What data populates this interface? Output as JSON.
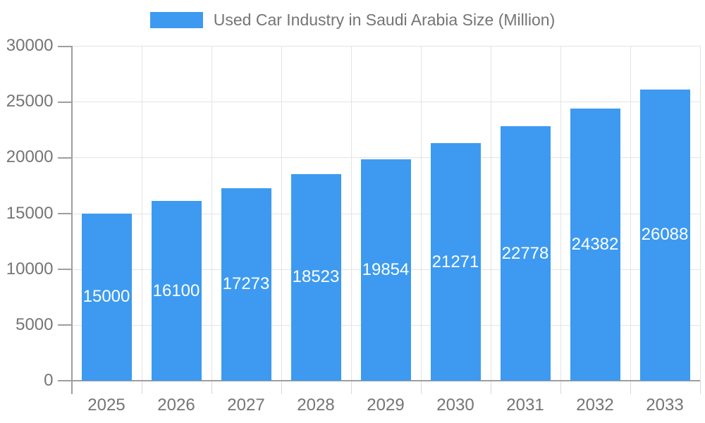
{
  "legend": {
    "title": "Used Car Industry in Saudi Arabia Size (Million)"
  },
  "chart_data": {
    "type": "bar",
    "title": "Used Car Industry in Saudi Arabia Size (Million)",
    "categories": [
      "2025",
      "2026",
      "2027",
      "2028",
      "2029",
      "2030",
      "2031",
      "2032",
      "2033"
    ],
    "values": [
      15000,
      16100,
      17273,
      18523,
      19854,
      21271,
      22778,
      24382,
      26088
    ],
    "xlabel": "",
    "ylabel": "",
    "ylim": [
      0,
      30000
    ],
    "yticks": [
      0,
      5000,
      10000,
      15000,
      20000,
      25000,
      30000
    ],
    "grid": true,
    "legend_position": "top",
    "value_label_position": "inside-center"
  },
  "colors": {
    "bar": "#3D9AF0",
    "gridline": "#E4E4E4",
    "axis": "#9E9E9E",
    "minor_tick": "#D8D8D8",
    "text": "#757575",
    "value_label": "#FFFFFF",
    "background": "#FFFFFF"
  }
}
